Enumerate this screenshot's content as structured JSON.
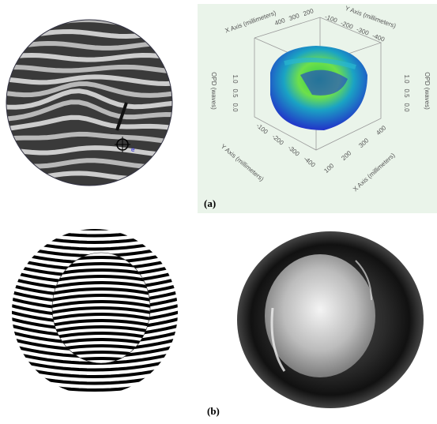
{
  "figure": {
    "panel_labels": [
      "(a)",
      "(b)"
    ],
    "plot3d": {
      "axis_labels": [
        "X Axis (millimeters)",
        "Y Axis (millimeters)",
        "OPD (waves)",
        "OPD (waves)",
        "Y Axis (millimeters)",
        "X Axis (millimeters)"
      ],
      "top_x_ticks": [
        "400",
        "300",
        "200"
      ],
      "top_y_ticks": [
        "-100",
        "-200",
        "-300",
        "-400"
      ],
      "left_opd_ticks": [
        "1.0",
        "0.5",
        "0.0"
      ],
      "right_opd_ticks": [
        "1.0",
        "0.5",
        "0.0"
      ],
      "bottom_y_ticks": [
        "-100",
        "-200",
        "-300",
        "-400"
      ],
      "bottom_x_ticks": [
        "100",
        "200",
        "300",
        "400"
      ]
    }
  }
}
